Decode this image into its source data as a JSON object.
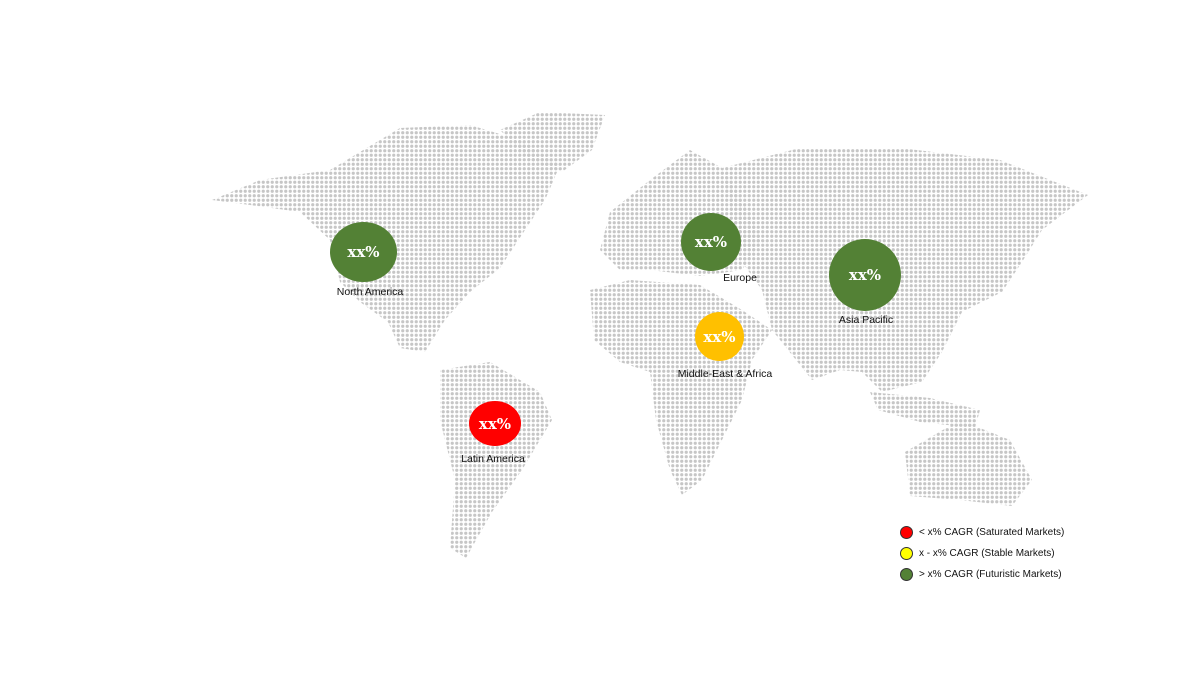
{
  "regions": [
    {
      "name": "North America",
      "value": "xx%",
      "color": "#538135"
    },
    {
      "name": "Europe",
      "value": "xx%",
      "color": "#538135"
    },
    {
      "name": "Asia Pacific",
      "value": "xx%",
      "color": "#538135"
    },
    {
      "name": "Middle-East & Africa",
      "value": "xx%",
      "color": "#ffc000"
    },
    {
      "name": "Latin America",
      "value": "xx%",
      "color": "#ff0000"
    }
  ],
  "legend": [
    {
      "label": "< x% CAGR (Saturated Markets)",
      "color": "#ff0000"
    },
    {
      "label": "x - x% CAGR (Stable Markets)",
      "color": "#ffff00"
    },
    {
      "label": "> x% CAGR (Futuristic Markets)",
      "color": "#538135"
    }
  ]
}
